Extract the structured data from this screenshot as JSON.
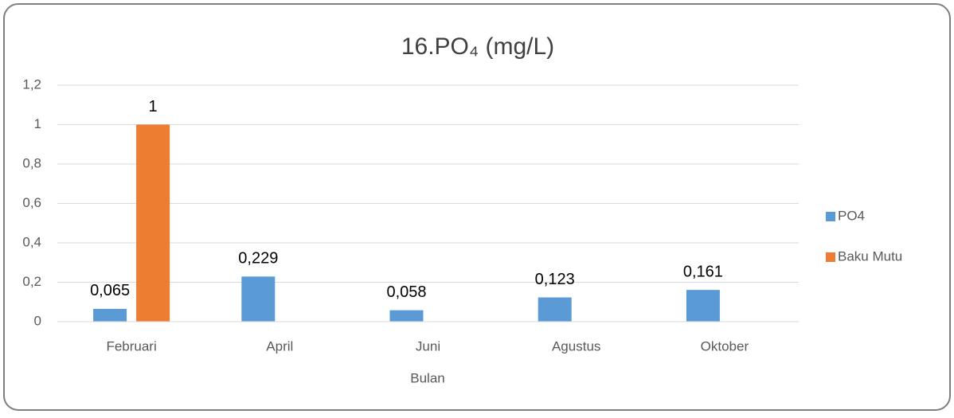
{
  "chart_data": {
    "type": "bar",
    "title": "16.PO₄ (mg/L)",
    "x_label": "Bulan",
    "categories": [
      "Februari",
      "April",
      "Juni",
      "Agustus",
      "Oktober"
    ],
    "series": [
      {
        "name": "PO4",
        "color": "#5b9bd5",
        "values": [
          0.065,
          0.229,
          0.058,
          0.123,
          0.161
        ],
        "value_labels": [
          "0,065",
          "0,229",
          "0,058",
          "0,123",
          "0,161"
        ]
      },
      {
        "name": "Baku Mutu",
        "color": "#ed7d31",
        "values": [
          1,
          null,
          null,
          null,
          null
        ]
      }
    ],
    "ylim": [
      0,
      1.2
    ],
    "yticks": [
      0,
      {
        "value": 0.2,
        "label": "0,2"
      },
      {
        "value": 0.4,
        "label": "0,4"
      },
      {
        "value": 0.6,
        "label": "0,6"
      },
      {
        "value": 0.8,
        "label": "0,8"
      },
      1,
      {
        "value": 1.2,
        "label": "1,2"
      }
    ],
    "grid": true,
    "legend": "right"
  }
}
